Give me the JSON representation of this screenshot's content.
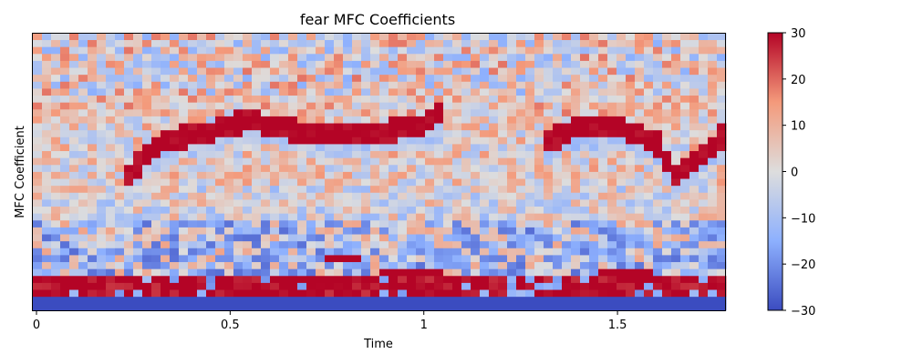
{
  "chart_data": {
    "type": "heatmap",
    "title": "fear MFC Coefficients",
    "xlabel": "Time",
    "ylabel": "MFC Coefficient",
    "xlim": [
      0,
      1.78
    ],
    "x_ticks": [
      {
        "value": 0,
        "label": "0"
      },
      {
        "value": 0.5,
        "label": "0.5"
      },
      {
        "value": 1,
        "label": "1"
      },
      {
        "value": 1.5,
        "label": "1.5"
      }
    ],
    "n_coefficients": 40,
    "n_frames": 76,
    "colormap": "coolwarm",
    "colorbar": {
      "vmin": -30,
      "vmax": 30,
      "ticks": [
        30,
        20,
        10,
        0,
        -10,
        -20,
        -30
      ],
      "tick_labels": [
        "30",
        "20",
        "10",
        "0",
        "−10",
        "−20",
        "−30"
      ]
    },
    "features": {
      "low_band": {
        "rows": [
          0,
          1
        ],
        "value": -30
      },
      "red_band_low": {
        "rows": [
          2,
          4
        ],
        "value": 30
      },
      "contour_upper": {
        "value": 30,
        "x": [
          0.24,
          0.34,
          0.45,
          0.55,
          0.7,
          0.85,
          1.0,
          1.05
        ],
        "y": [
          19,
          24,
          25,
          27,
          25,
          25,
          26,
          28
        ]
      },
      "contour_right": {
        "value": 30,
        "x": [
          1.3,
          1.4,
          1.5,
          1.6,
          1.65,
          1.7,
          1.78
        ],
        "y": [
          23,
          26,
          26,
          24,
          19,
          21,
          25
        ]
      }
    }
  }
}
